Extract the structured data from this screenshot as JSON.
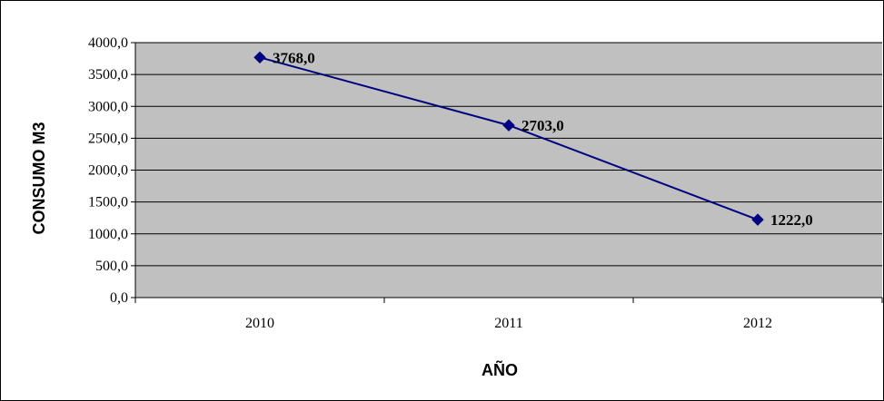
{
  "chart_data": {
    "type": "line",
    "title": "",
    "xlabel": "AÑO",
    "ylabel": "CONSUMO M3",
    "categories": [
      "2010",
      "2011",
      "2012"
    ],
    "series": [
      {
        "values": [
          3768.0,
          2703.0,
          1222.0
        ],
        "data_labels": [
          "3768,0",
          "2703,0",
          "1222,0"
        ],
        "color": "#000080",
        "marker": "diamond"
      }
    ],
    "ylim": [
      0,
      4000
    ],
    "y_ticks": [
      0,
      500,
      1000,
      1500,
      2000,
      2500,
      3000,
      3500,
      4000
    ],
    "y_tick_labels": [
      "0,0",
      "500,0",
      "1000,0",
      "1500,0",
      "2000,0",
      "2500,0",
      "3000,0",
      "3500,0",
      "4000,0"
    ],
    "grid": true,
    "legend": "none",
    "plot_background": "#c0c0c0",
    "gridline_color": "#000000"
  }
}
